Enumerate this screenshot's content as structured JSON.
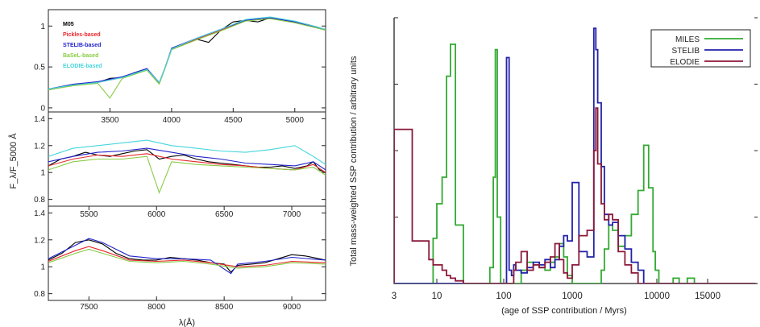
{
  "chart_data": [
    {
      "type": "line",
      "subplots": [
        {
          "xlim": [
            3000,
            5250
          ],
          "ylim": [
            -0.05,
            1.2
          ],
          "xticks": [
            3500,
            4000,
            4500,
            5000
          ],
          "yticks": [
            0,
            0.5,
            1
          ],
          "ytick_labels": [
            "0",
            "0.5",
            "1"
          ]
        },
        {
          "xlim": [
            3000,
            5250
          ],
          "ylim": [
            0.75,
            1.45
          ],
          "xticks": [],
          "yticks": [
            0.8,
            1,
            1.2,
            1.4
          ],
          "ytick_labels": [
            "0.8",
            "1",
            "1.2",
            "1.4"
          ]
        },
        {
          "xlim": [
            5200,
            7250
          ],
          "ylim": [
            0.75,
            1.45
          ],
          "xticks": [
            5500,
            6000,
            6500,
            7000
          ],
          "yticks": [
            0.8,
            1,
            1.2,
            1.4
          ],
          "ytick_labels": [
            "0.8",
            "1",
            "1.2",
            "1.4"
          ]
        },
        {
          "xlim": [
            7200,
            9250
          ],
          "ylim": [
            0.75,
            1.45
          ],
          "xticks": [
            7500,
            8000,
            8500,
            9000
          ],
          "yticks": [],
          "ytick_labels": []
        }
      ],
      "xlabel": "λ(Å)",
      "ylabel": "F_λ/F_5000 Å",
      "legend": {
        "entries": [
          {
            "name": "M05",
            "color": "#000000"
          },
          {
            "name": "Pickles-based",
            "color": "#e8262b"
          },
          {
            "name": "STELIB-based",
            "color": "#2222cc"
          },
          {
            "name": "BaSeL-based",
            "color": "#88cc44"
          },
          {
            "name": "ELODIE-based",
            "color": "#44d6dd"
          }
        ],
        "position": "top-left"
      },
      "series": [
        {
          "name": "M05",
          "color": "#000000",
          "segments": [
            {
              "subplot": 0,
              "x": [
                3000,
                3100,
                3200,
                3300,
                3400,
                3500,
                3600,
                3700,
                3800,
                3900,
                3950,
                4000,
                4100,
                4200,
                4300,
                4400,
                4500,
                4600,
                4700,
                4800,
                4900,
                5000,
                5100,
                5200,
                5250
              ],
              "y": [
                0.22,
                0.25,
                0.28,
                0.3,
                0.31,
                0.36,
                0.37,
                0.43,
                0.48,
                0.3,
                0.5,
                0.72,
                0.78,
                0.84,
                0.8,
                0.95,
                1.05,
                1.07,
                1.05,
                1.1,
                1.08,
                1.05,
                1.02,
                0.98,
                0.95
              ]
            },
            {
              "subplot": 1,
              "x": [
                3000,
                3100,
                3200,
                3300,
                3400,
                3500,
                3600,
                3700,
                3800,
                3900,
                4000,
                4100,
                4200,
                4300,
                4400,
                4500,
                4600,
                4700,
                4800,
                4900,
                5000,
                5100,
                5150,
                5200,
                5250
              ],
              "y": [
                1.05,
                1.1,
                1.12,
                1.15,
                1.13,
                1.12,
                1.14,
                1.16,
                1.17,
                1.1,
                1.12,
                1.13,
                1.1,
                1.08,
                1.07,
                1.06,
                1.05,
                1.04,
                1.04,
                1.05,
                1.03,
                1.05,
                1.08,
                1.02,
                1.0
              ]
            },
            {
              "subplot": 2,
              "x": [
                5200,
                5300,
                5400,
                5500,
                5600,
                5700,
                5800,
                5900,
                6000,
                6100,
                6200,
                6300,
                6400,
                6500,
                6550,
                6600,
                6700,
                6800,
                6900,
                7000,
                7100,
                7200,
                7250
              ],
              "y": [
                1.05,
                1.1,
                1.18,
                1.2,
                1.17,
                1.1,
                1.06,
                1.05,
                1.05,
                1.07,
                1.06,
                1.05,
                1.03,
                1.02,
                0.96,
                1.01,
                1.02,
                1.03,
                1.06,
                1.09,
                1.08,
                1.06,
                1.05
              ]
            }
          ]
        },
        {
          "name": "Pickles-based",
          "color": "#e8262b",
          "segments": [
            {
              "subplot": 0,
              "x": [
                3000,
                3200,
                3400,
                3600,
                3800,
                3900,
                3950,
                4000,
                4200,
                4400,
                4600,
                4800,
                5000,
                5250
              ],
              "y": [
                0.22,
                0.28,
                0.31,
                0.37,
                0.47,
                0.3,
                0.5,
                0.72,
                0.84,
                0.95,
                1.07,
                1.1,
                1.05,
                0.95
              ]
            },
            {
              "subplot": 1,
              "x": [
                3000,
                3200,
                3400,
                3600,
                3800,
                4000,
                4200,
                4400,
                4600,
                4800,
                5000,
                5150,
                5250
              ],
              "y": [
                1.05,
                1.1,
                1.13,
                1.12,
                1.14,
                1.1,
                1.08,
                1.06,
                1.05,
                1.03,
                1.02,
                1.06,
                1.0
              ]
            },
            {
              "subplot": 2,
              "x": [
                5200,
                5400,
                5500,
                5600,
                5800,
                6000,
                6200,
                6400,
                6600,
                6800,
                7000,
                7250
              ],
              "y": [
                1.04,
                1.12,
                1.15,
                1.12,
                1.05,
                1.04,
                1.05,
                1.03,
                1.0,
                1.01,
                1.04,
                1.03
              ]
            }
          ]
        },
        {
          "name": "STELIB-based",
          "color": "#2222cc",
          "segments": [
            {
              "subplot": 0,
              "x": [
                3000,
                3200,
                3400,
                3600,
                3800,
                3900,
                3950,
                4000,
                4200,
                4400,
                4600,
                4800,
                5000,
                5250
              ],
              "y": [
                0.23,
                0.29,
                0.32,
                0.38,
                0.48,
                0.31,
                0.5,
                0.73,
                0.85,
                0.96,
                1.07,
                1.1,
                1.05,
                0.95
              ]
            },
            {
              "subplot": 1,
              "x": [
                3000,
                3200,
                3400,
                3600,
                3800,
                4000,
                4200,
                4400,
                4600,
                4800,
                5000,
                5150,
                5250
              ],
              "y": [
                1.08,
                1.12,
                1.15,
                1.16,
                1.18,
                1.15,
                1.12,
                1.1,
                1.07,
                1.06,
                1.05,
                1.08,
                1.02
              ]
            },
            {
              "subplot": 2,
              "x": [
                5200,
                5400,
                5500,
                5600,
                5800,
                6000,
                6200,
                6400,
                6550,
                6600,
                6800,
                7000,
                7250
              ],
              "y": [
                1.06,
                1.16,
                1.21,
                1.18,
                1.08,
                1.06,
                1.06,
                1.05,
                0.95,
                1.02,
                1.04,
                1.07,
                1.05
              ]
            }
          ]
        },
        {
          "name": "BaSeL-based",
          "color": "#88cc44",
          "segments": [
            {
              "subplot": 0,
              "x": [
                3000,
                3200,
                3400,
                3500,
                3600,
                3800,
                3900,
                3950,
                4000,
                4200,
                4400,
                4600,
                4800,
                5000,
                5250
              ],
              "y": [
                0.22,
                0.27,
                0.3,
                0.12,
                0.36,
                0.46,
                0.29,
                0.49,
                0.71,
                0.83,
                0.94,
                1.06,
                1.09,
                1.04,
                0.95
              ]
            },
            {
              "subplot": 1,
              "x": [
                3000,
                3200,
                3400,
                3600,
                3800,
                3900,
                4000,
                4200,
                4400,
                4600,
                4800,
                5000,
                5150,
                5250
              ],
              "y": [
                1.02,
                1.08,
                1.1,
                1.1,
                1.12,
                0.85,
                1.08,
                1.06,
                1.05,
                1.04,
                1.03,
                1.02,
                1.04,
                0.98
              ]
            },
            {
              "subplot": 2,
              "x": [
                5200,
                5400,
                5500,
                5600,
                5800,
                6000,
                6200,
                6400,
                6600,
                6800,
                7000,
                7250
              ],
              "y": [
                1.03,
                1.1,
                1.13,
                1.1,
                1.04,
                1.03,
                1.04,
                1.02,
                0.99,
                1.0,
                1.03,
                1.02
              ]
            }
          ]
        },
        {
          "name": "ELODIE-based",
          "color": "#44d6dd",
          "segments": [
            {
              "subplot": 0,
              "x": [
                3000,
                3200,
                3400,
                3600,
                3800,
                3900,
                3950,
                4000,
                4200,
                4400,
                4600,
                4800,
                5000,
                5250
              ],
              "y": [
                0.23,
                0.28,
                0.31,
                0.37,
                0.47,
                0.31,
                0.5,
                0.72,
                0.85,
                0.96,
                1.08,
                1.11,
                1.06,
                0.96
              ]
            },
            {
              "subplot": 1,
              "x": [
                3000,
                3200,
                3400,
                3600,
                3800,
                4000,
                4200,
                4400,
                4600,
                4800,
                5000,
                5150,
                5250
              ],
              "y": [
                1.12,
                1.18,
                1.2,
                1.22,
                1.24,
                1.2,
                1.18,
                1.16,
                1.15,
                1.17,
                1.2,
                1.12,
                1.06
              ]
            }
          ]
        }
      ]
    },
    {
      "type": "line",
      "title": "",
      "xlabel": "(age of SSP contribution / Myrs)",
      "ylabel": "Total mass-weighted SSP contribution / arbitrary units",
      "xtick_labels": [
        "3",
        "10",
        "100",
        "1000",
        "10000",
        "15000"
      ],
      "ylim": [
        0,
        1
      ],
      "legend": {
        "entries": [
          "MILES",
          "STELIB",
          "ELODIE"
        ],
        "position": "top-right"
      },
      "bin_edges": [
        3,
        5,
        8,
        9,
        10,
        12,
        14,
        16,
        19,
        25,
        40,
        62,
        70,
        75,
        80,
        90,
        100,
        110,
        120,
        130,
        140,
        150,
        180,
        220,
        270,
        330,
        400,
        480,
        560,
        650,
        750,
        850,
        1000,
        1200,
        1500,
        1800,
        1900,
        2000,
        2200,
        2400,
        2700,
        3000,
        3500,
        4200,
        5000,
        6000,
        7000,
        8000,
        9000,
        9600,
        10200,
        11000,
        11600,
        12200,
        13000,
        13700,
        14300,
        15000,
        15800,
        16500,
        17200,
        18000,
        18700,
        20000
      ],
      "series": [
        {
          "name": "MILES",
          "color": "#33aa33",
          "values": [
            0.0,
            0.0,
            0.0,
            0.17,
            0.3,
            0.4,
            0.78,
            0.9,
            0.22,
            0.0,
            0.0,
            0.06,
            0.4,
            0.88,
            0.25,
            0.0,
            0.0,
            0.0,
            0.0,
            0.0,
            0.0,
            0.0,
            0.05,
            0.08,
            0.07,
            0.06,
            0.05,
            0.08,
            0.1,
            0.15,
            0.1,
            0.03,
            0.0,
            0.0,
            0.0,
            0.0,
            0.0,
            0.0,
            0.05,
            0.13,
            0.22,
            0.2,
            0.14,
            0.18,
            0.26,
            0.35,
            0.52,
            0.36,
            0.12,
            0.05,
            0.0,
            0.0,
            0.02,
            0.0,
            0.02,
            0.0,
            0.0,
            0.0,
            0.0,
            0.0,
            0.0,
            0.0,
            0.0
          ]
        },
        {
          "name": "STELIB",
          "color": "#2222aa",
          "values": [
            0.0,
            0.0,
            0.0,
            0.0,
            0.0,
            0.0,
            0.0,
            0.0,
            0.0,
            0.0,
            0.0,
            0.0,
            0.0,
            0.0,
            0.0,
            0.0,
            0.0,
            0.85,
            0.05,
            0.03,
            0.07,
            0.05,
            0.04,
            0.06,
            0.08,
            0.07,
            0.09,
            0.06,
            0.09,
            0.14,
            0.18,
            0.16,
            0.38,
            0.12,
            0.1,
            0.96,
            0.88,
            0.68,
            0.44,
            0.26,
            0.22,
            0.23,
            0.18,
            0.13,
            0.08,
            0.05,
            0.0,
            0.0,
            0.0,
            0.0,
            0.0,
            0.0,
            0.0,
            0.0,
            0.0,
            0.0,
            0.0,
            0.0,
            0.0,
            0.0,
            0.0,
            0.0,
            0.0
          ]
        },
        {
          "name": "ELODIE",
          "color": "#8b1a3a",
          "values": [
            0.58,
            0.16,
            0.09,
            0.07,
            0.07,
            0.05,
            0.03,
            0.02,
            0.01,
            0.0,
            0.0,
            0.0,
            0.0,
            0.0,
            0.0,
            0.0,
            0.0,
            0.0,
            0.0,
            0.0,
            0.05,
            0.08,
            0.12,
            0.05,
            0.07,
            0.06,
            0.08,
            0.1,
            0.15,
            0.09,
            0.04,
            0.02,
            0.07,
            0.18,
            0.2,
            0.5,
            0.66,
            0.45,
            0.3,
            0.24,
            0.26,
            0.24,
            0.12,
            0.07,
            0.04,
            0.0,
            0.0,
            0.0,
            0.0,
            0.0,
            0.0,
            0.0,
            0.0,
            0.0,
            0.0,
            0.0,
            0.0,
            0.0,
            0.0,
            0.0,
            0.0,
            0.0,
            0.0
          ]
        }
      ]
    }
  ]
}
